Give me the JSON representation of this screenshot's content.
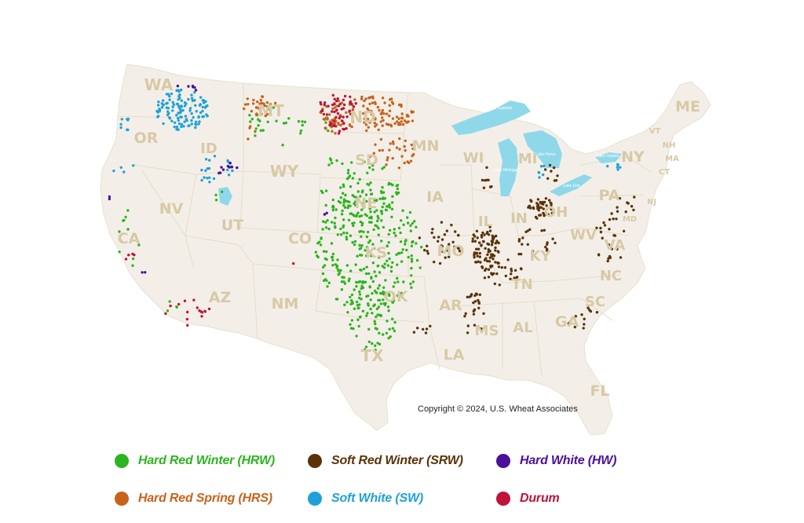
{
  "map": {
    "copyright": "Copyright © 2024, U.S. Wheat Associates",
    "land_color": "#f3efe8",
    "water_color": "#8fd8ea",
    "label_color": "#d8c9a6",
    "state_labels": [
      "WA",
      "OR",
      "ID",
      "MT",
      "ND",
      "MN",
      "WI",
      "MI",
      "NY",
      "ME",
      "VT",
      "NH",
      "MA",
      "CT",
      "NJ",
      "PA",
      "MD",
      "NV",
      "CA",
      "UT",
      "WY",
      "SD",
      "NE",
      "IA",
      "CO",
      "IL",
      "IN",
      "OH",
      "WV",
      "VA",
      "KY",
      "MO",
      "KS",
      "NM",
      "AZ",
      "OK",
      "AR",
      "TN",
      "NC",
      "SC",
      "GA",
      "AL",
      "MS",
      "LA",
      "TX",
      "FL"
    ],
    "lake_labels": [
      "Lake Superior",
      "Lake Michigan",
      "Lake Huron",
      "Lake Erie",
      "Lake Ontario"
    ]
  },
  "legend": [
    {
      "key": "hrw",
      "label": "Hard Red Winter (HRW)",
      "color": "#2bb51e"
    },
    {
      "key": "srw",
      "label": "Soft Red Winter (SRW)",
      "color": "#5a3208"
    },
    {
      "key": "hw",
      "label": "Hard White (HW)",
      "color": "#4b0f9a"
    },
    {
      "key": "hrs",
      "label": "Hard Red Spring (HRS)",
      "color": "#c8621b"
    },
    {
      "key": "sw",
      "label": "Soft White (SW)",
      "color": "#1ea1d8"
    },
    {
      "key": "durum",
      "label": "Durum",
      "color": "#c0133a"
    }
  ]
}
